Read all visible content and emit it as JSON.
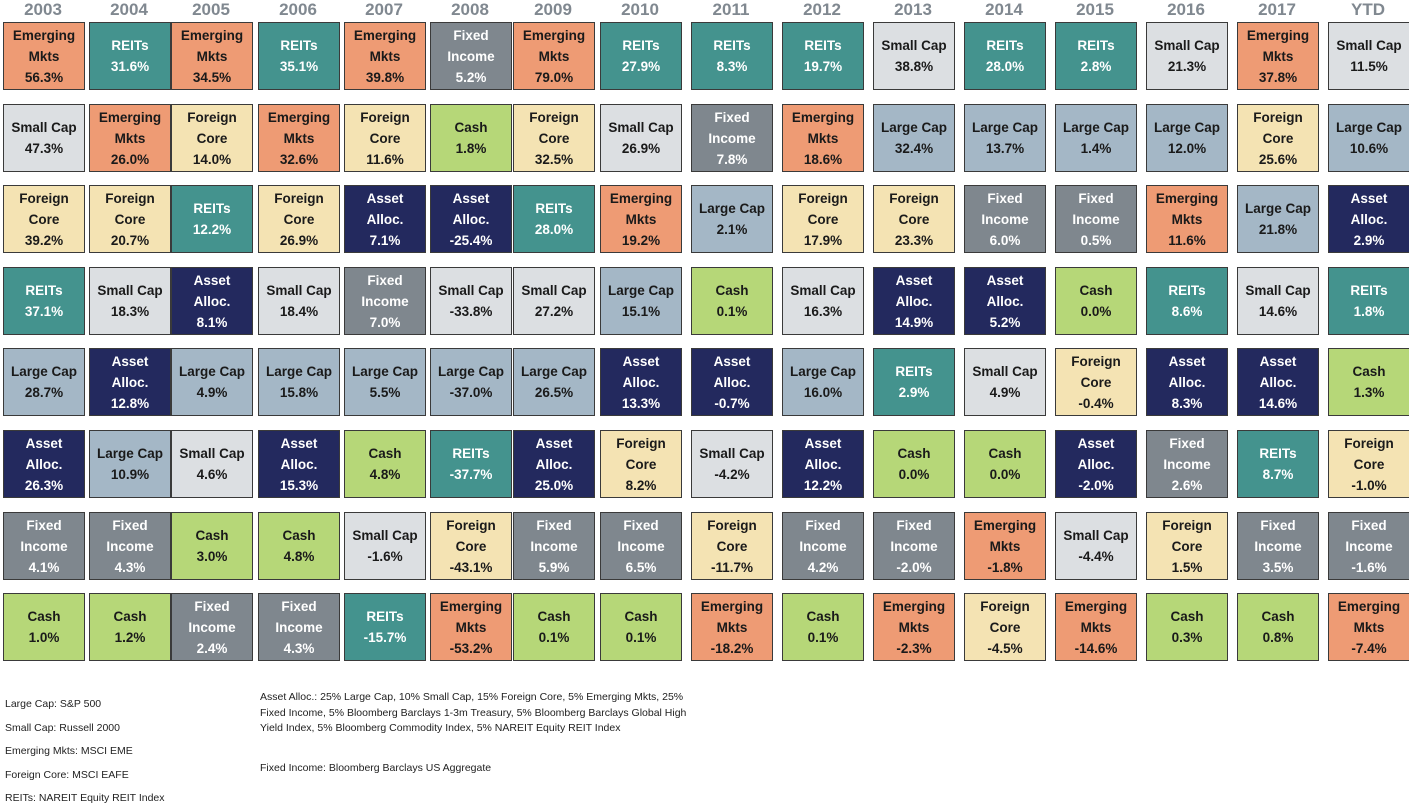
{
  "chart_data": {
    "type": "table",
    "years": [
      "2003",
      "2004",
      "2005",
      "2006",
      "2007",
      "2008",
      "2009",
      "2010",
      "2011",
      "2012",
      "2013",
      "2014",
      "2015",
      "2016",
      "2017",
      "YTD"
    ],
    "asset_classes": {
      "emerging": {
        "label": "Emerging\nMkts",
        "color": "#EE9B74",
        "text": "#1a1a1a"
      },
      "reits": {
        "label": "REITs",
        "color": "#44938E",
        "text": "#ffffff"
      },
      "small": {
        "label": "Small Cap",
        "color": "#DCDFE2",
        "text": "#1a1a1a"
      },
      "large": {
        "label": "Large Cap",
        "color": "#A4B7C6",
        "text": "#1a1a1a"
      },
      "foreign": {
        "label": "Foreign\nCore",
        "color": "#F4E3B3",
        "text": "#1a1a1a"
      },
      "fixed": {
        "label": "Fixed\nIncome",
        "color": "#7F878E",
        "text": "#ffffff"
      },
      "cash": {
        "label": "Cash",
        "color": "#B6D778",
        "text": "#1a1a1a"
      },
      "asset": {
        "label": "Asset\nAlloc.",
        "color": "#23295E",
        "text": "#ffffff"
      }
    },
    "columns": [
      [
        [
          "emerging",
          "56.3%"
        ],
        [
          "small",
          "47.3%"
        ],
        [
          "foreign",
          "39.2%"
        ],
        [
          "reits",
          "37.1%"
        ],
        [
          "large",
          "28.7%"
        ],
        [
          "asset",
          "26.3%"
        ],
        [
          "fixed",
          "4.1%"
        ],
        [
          "cash",
          "1.0%"
        ]
      ],
      [
        [
          "reits",
          "31.6%"
        ],
        [
          "emerging",
          "26.0%"
        ],
        [
          "foreign",
          "20.7%"
        ],
        [
          "small",
          "18.3%"
        ],
        [
          "asset",
          "12.8%"
        ],
        [
          "large",
          "10.9%"
        ],
        [
          "fixed",
          "4.3%"
        ],
        [
          "cash",
          "1.2%"
        ]
      ],
      [
        [
          "emerging",
          "34.5%"
        ],
        [
          "foreign",
          "14.0%"
        ],
        [
          "reits",
          "12.2%"
        ],
        [
          "asset",
          "8.1%"
        ],
        [
          "large",
          "4.9%"
        ],
        [
          "small",
          "4.6%"
        ],
        [
          "cash",
          "3.0%"
        ],
        [
          "fixed",
          "2.4%"
        ]
      ],
      [
        [
          "reits",
          "35.1%"
        ],
        [
          "emerging",
          "32.6%"
        ],
        [
          "foreign",
          "26.9%"
        ],
        [
          "small",
          "18.4%"
        ],
        [
          "large",
          "15.8%"
        ],
        [
          "asset",
          "15.3%"
        ],
        [
          "cash",
          "4.8%"
        ],
        [
          "fixed",
          "4.3%"
        ]
      ],
      [
        [
          "emerging",
          "39.8%"
        ],
        [
          "foreign",
          "11.6%"
        ],
        [
          "asset",
          "7.1%"
        ],
        [
          "fixed",
          "7.0%"
        ],
        [
          "large",
          "5.5%"
        ],
        [
          "cash",
          "4.8%"
        ],
        [
          "small",
          "-1.6%"
        ],
        [
          "reits",
          "-15.7%"
        ]
      ],
      [
        [
          "fixed",
          "5.2%"
        ],
        [
          "cash",
          "1.8%"
        ],
        [
          "asset",
          "-25.4%"
        ],
        [
          "small",
          "-33.8%"
        ],
        [
          "large",
          "-37.0%"
        ],
        [
          "reits",
          "-37.7%"
        ],
        [
          "foreign",
          "-43.1%"
        ],
        [
          "emerging",
          "-53.2%"
        ]
      ],
      [
        [
          "emerging",
          "79.0%"
        ],
        [
          "foreign",
          "32.5%"
        ],
        [
          "reits",
          "28.0%"
        ],
        [
          "small",
          "27.2%"
        ],
        [
          "large",
          "26.5%"
        ],
        [
          "asset",
          "25.0%"
        ],
        [
          "fixed",
          "5.9%"
        ],
        [
          "cash",
          "0.1%"
        ]
      ],
      [
        [
          "reits",
          "27.9%"
        ],
        [
          "small",
          "26.9%"
        ],
        [
          "emerging",
          "19.2%"
        ],
        [
          "large",
          "15.1%"
        ],
        [
          "asset",
          "13.3%"
        ],
        [
          "foreign",
          "8.2%"
        ],
        [
          "fixed",
          "6.5%"
        ],
        [
          "cash",
          "0.1%"
        ]
      ],
      [
        [
          "reits",
          "8.3%"
        ],
        [
          "fixed",
          "7.8%"
        ],
        [
          "large",
          "2.1%"
        ],
        [
          "cash",
          "0.1%"
        ],
        [
          "asset",
          "-0.7%"
        ],
        [
          "small",
          "-4.2%"
        ],
        [
          "foreign",
          "-11.7%"
        ],
        [
          "emerging",
          "-18.2%"
        ]
      ],
      [
        [
          "reits",
          "19.7%"
        ],
        [
          "emerging",
          "18.6%"
        ],
        [
          "foreign",
          "17.9%"
        ],
        [
          "small",
          "16.3%"
        ],
        [
          "large",
          "16.0%"
        ],
        [
          "asset",
          "12.2%"
        ],
        [
          "fixed",
          "4.2%"
        ],
        [
          "cash",
          "0.1%"
        ]
      ],
      [
        [
          "small",
          "38.8%"
        ],
        [
          "large",
          "32.4%"
        ],
        [
          "foreign",
          "23.3%"
        ],
        [
          "asset",
          "14.9%"
        ],
        [
          "reits",
          "2.9%"
        ],
        [
          "cash",
          "0.0%"
        ],
        [
          "fixed",
          "-2.0%"
        ],
        [
          "emerging",
          "-2.3%"
        ]
      ],
      [
        [
          "reits",
          "28.0%"
        ],
        [
          "large",
          "13.7%"
        ],
        [
          "fixed",
          "6.0%"
        ],
        [
          "asset",
          "5.2%"
        ],
        [
          "small",
          "4.9%"
        ],
        [
          "cash",
          "0.0%"
        ],
        [
          "emerging",
          "-1.8%"
        ],
        [
          "foreign",
          "-4.5%"
        ]
      ],
      [
        [
          "reits",
          "2.8%"
        ],
        [
          "large",
          "1.4%"
        ],
        [
          "fixed",
          "0.5%"
        ],
        [
          "cash",
          "0.0%"
        ],
        [
          "foreign",
          "-0.4%"
        ],
        [
          "asset",
          "-2.0%"
        ],
        [
          "small",
          "-4.4%"
        ],
        [
          "emerging",
          "-14.6%"
        ]
      ],
      [
        [
          "small",
          "21.3%"
        ],
        [
          "large",
          "12.0%"
        ],
        [
          "emerging",
          "11.6%"
        ],
        [
          "reits",
          "8.6%"
        ],
        [
          "asset",
          "8.3%"
        ],
        [
          "fixed",
          "2.6%"
        ],
        [
          "foreign",
          "1.5%"
        ],
        [
          "cash",
          "0.3%"
        ]
      ],
      [
        [
          "emerging",
          "37.8%"
        ],
        [
          "foreign",
          "25.6%"
        ],
        [
          "large",
          "21.8%"
        ],
        [
          "small",
          "14.6%"
        ],
        [
          "asset",
          "14.6%"
        ],
        [
          "reits",
          "8.7%"
        ],
        [
          "fixed",
          "3.5%"
        ],
        [
          "cash",
          "0.8%"
        ]
      ],
      [
        [
          "small",
          "11.5%"
        ],
        [
          "large",
          "10.6%"
        ],
        [
          "asset",
          "2.9%"
        ],
        [
          "reits",
          "1.8%"
        ],
        [
          "cash",
          "1.3%"
        ],
        [
          "foreign",
          "-1.0%"
        ],
        [
          "fixed",
          "-1.6%"
        ],
        [
          "emerging",
          "-7.4%"
        ]
      ]
    ]
  },
  "legend": {
    "left": [
      "Large Cap: S&P 500",
      "Small Cap: Russell 2000",
      "Emerging Mkts: MSCI EME",
      "Foreign Core: MSCI EAFE",
      "REITs: NAREIT Equity REIT Index"
    ],
    "asset_alloc_lines": [
      "Asset Alloc.: 25% Large Cap, 10% Small Cap, 15% Foreign Core, 5% Emerging Mkts, 25%",
      "Fixed Income, 5% Bloomberg Barclays 1-3m Treasury, 5% Bloomberg Barclays Global High",
      "Yield Index, 5% Bloomberg Commodity Index, 5% NAREIT Equity REIT Index"
    ],
    "fixed_income": "Fixed Income: Bloomberg Barclays US Aggregate"
  }
}
